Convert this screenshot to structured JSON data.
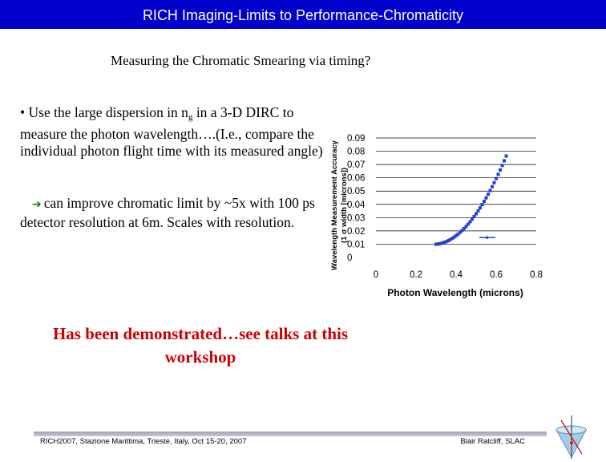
{
  "slide": {
    "title": "RICH Imaging-Limits to Performance-Chromaticity",
    "subtitle": "Measuring the Chromatic Smearing via timing?",
    "bullet1": {
      "pre": "• Use the large dispersion in n",
      "sub": "g",
      "post": " in a 3-D DIRC to measure the photon wavelength….(I.e., compare the individual photon flight time with its measured angle)"
    },
    "bullet2": "can improve chromatic limit by ~5x with 100 ps detector resolution at 6m. Scales with resolution.",
    "highlight": "Has been demonstrated…see talks at this workshop",
    "footer_left": "RICH2007, Stazione Marittima, Trieste, Italy, Oct 15-20, 2007",
    "footer_right": "Blair Ratcliff, SLAC"
  },
  "colors": {
    "title_bar": "#0000cc",
    "title_text": "#ffffff",
    "highlight_text": "#cc0000",
    "arrow": "#008000",
    "series": "#1f3fd0"
  },
  "chart_data": {
    "type": "scatter",
    "xlabel": "Photon Wavelength (microns)",
    "ylabel_line1": "Wavelength Measurement Accuracy",
    "ylabel_line2": "(1 σ width [microns])",
    "x_ticks": [
      "0",
      "0.2",
      "0.4",
      "0.6",
      "0.8"
    ],
    "y_ticks": [
      "0",
      "0.01",
      "0.02",
      "0.03",
      "0.04",
      "0.05",
      "0.06",
      "0.07",
      "0.08",
      "0.09"
    ],
    "xlim": [
      0,
      0.8
    ],
    "ylim": [
      0,
      0.09
    ],
    "grid": "horizontal",
    "legend_placement": "right",
    "series": [
      {
        "x": [
          0.3,
          0.31,
          0.32,
          0.33,
          0.34,
          0.35,
          0.36,
          0.37,
          0.38,
          0.39,
          0.4,
          0.41,
          0.42,
          0.43,
          0.44,
          0.45,
          0.46,
          0.47,
          0.48,
          0.49,
          0.5,
          0.51,
          0.52,
          0.53,
          0.54,
          0.55,
          0.56,
          0.57,
          0.58,
          0.59,
          0.6,
          0.61,
          0.62,
          0.63,
          0.64,
          0.65
        ],
        "y": [
          0.01,
          0.0101,
          0.0104,
          0.0108,
          0.0113,
          0.0119,
          0.0126,
          0.0134,
          0.0143,
          0.0153,
          0.0164,
          0.0176,
          0.0189,
          0.0203,
          0.0218,
          0.0234,
          0.0251,
          0.0269,
          0.0288,
          0.0308,
          0.0329,
          0.0351,
          0.0374,
          0.0398,
          0.0423,
          0.0449,
          0.0476,
          0.0504,
          0.0533,
          0.0563,
          0.0594,
          0.0626,
          0.0659,
          0.0693,
          0.0728,
          0.0764
        ]
      }
    ]
  }
}
